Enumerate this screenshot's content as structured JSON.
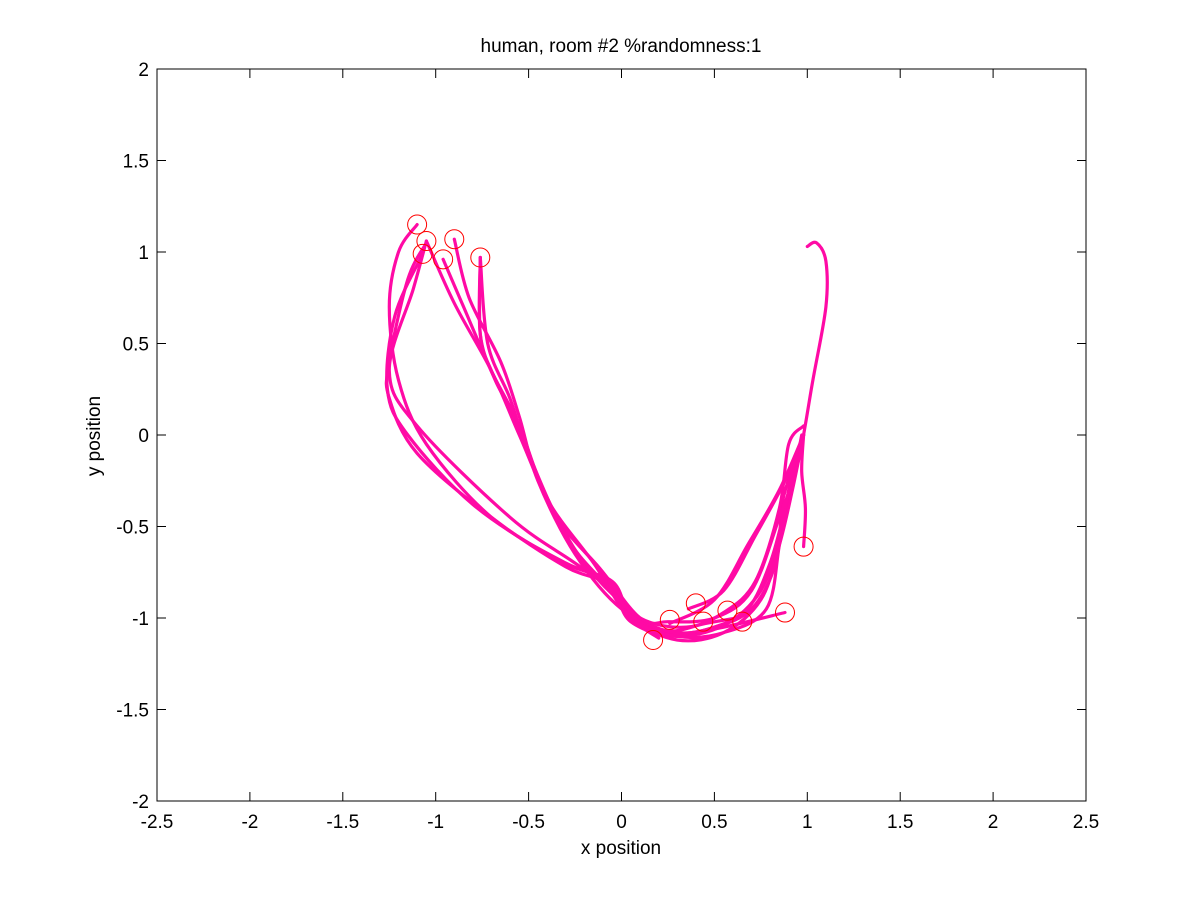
{
  "chart_data": {
    "type": "line",
    "title": "human, room #2 %randomness:1",
    "xlabel": "x position",
    "ylabel": "y position",
    "xlim": [
      -2.5,
      2.5
    ],
    "ylim": [
      -2,
      2
    ],
    "xticks": [
      -2.5,
      -2,
      -1.5,
      -1,
      -0.5,
      0,
      0.5,
      1,
      1.5,
      2,
      2.5
    ],
    "xtick_labels": [
      "-2.5",
      "-2",
      "-1.5",
      "-1",
      "-0.5",
      "0",
      "0.5",
      "1",
      "1.5",
      "2",
      "2.5"
    ],
    "yticks": [
      -2,
      -1.5,
      -1,
      -0.5,
      0,
      0.5,
      1,
      1.5,
      2
    ],
    "ytick_labels": [
      "-2",
      "-1.5",
      "-1",
      "-0.5",
      "0",
      "0.5",
      "1",
      "1.5",
      "2"
    ],
    "grid": false,
    "line_color": "#ff0aa5",
    "marker_color": "#ff0000",
    "series": [
      {
        "points": [
          [
            -1.1,
            1.15
          ],
          [
            -1.2,
            1.0
          ],
          [
            -1.25,
            0.7
          ],
          [
            -1.2,
            0.3
          ],
          [
            -1.05,
            -0.05
          ],
          [
            -0.7,
            -0.45
          ],
          [
            -0.3,
            -0.7
          ],
          [
            -0.05,
            -0.8
          ],
          [
            0.05,
            -0.98
          ],
          [
            0.25,
            -1.07
          ],
          [
            0.45,
            -1.03
          ],
          [
            0.62,
            -1.0
          ]
        ]
      },
      {
        "points": [
          [
            -1.05,
            1.05
          ],
          [
            -1.15,
            0.85
          ],
          [
            -1.25,
            0.4
          ],
          [
            -1.25,
            0.2
          ],
          [
            -1.1,
            -0.1
          ],
          [
            -0.7,
            -0.45
          ],
          [
            -0.3,
            -0.72
          ],
          [
            -0.05,
            -0.82
          ],
          [
            0.05,
            -0.99
          ],
          [
            0.25,
            -1.08
          ],
          [
            0.5,
            -1.06
          ],
          [
            0.88,
            -0.97
          ]
        ]
      },
      {
        "points": [
          [
            -1.07,
            0.99
          ],
          [
            -1.22,
            0.65
          ],
          [
            -1.26,
            0.25
          ],
          [
            -1.15,
            0.0
          ],
          [
            -0.8,
            -0.38
          ],
          [
            -0.35,
            -0.68
          ],
          [
            -0.07,
            -0.8
          ],
          [
            0.05,
            -1.0
          ],
          [
            0.2,
            -1.11
          ]
        ]
      },
      {
        "points": [
          [
            -1.05,
            1.06
          ],
          [
            -1.12,
            0.8
          ],
          [
            -1.25,
            0.35
          ],
          [
            -1.1,
            0.05
          ],
          [
            -0.6,
            -0.45
          ],
          [
            -0.25,
            -0.7
          ],
          [
            -0.05,
            -0.85
          ],
          [
            0.05,
            -1.02
          ],
          [
            0.28,
            -1.1
          ],
          [
            0.55,
            -1.04
          ],
          [
            0.75,
            -0.85
          ],
          [
            0.85,
            -0.55
          ],
          [
            0.93,
            -0.2
          ],
          [
            0.97,
            0.0
          ]
        ]
      },
      {
        "points": [
          [
            -1.05,
            1.06
          ],
          [
            -0.9,
            0.72
          ],
          [
            -0.7,
            0.35
          ],
          [
            -0.55,
            0.0
          ],
          [
            -0.35,
            -0.45
          ],
          [
            -0.1,
            -0.75
          ],
          [
            0.05,
            -1.0
          ],
          [
            0.3,
            -1.12
          ],
          [
            0.55,
            -1.08
          ],
          [
            0.75,
            -0.9
          ],
          [
            0.85,
            -0.6
          ],
          [
            0.92,
            -0.3
          ],
          [
            0.98,
            0.0
          ]
        ]
      },
      {
        "points": [
          [
            -0.96,
            0.96
          ],
          [
            -0.85,
            0.7
          ],
          [
            -0.7,
            0.35
          ],
          [
            -0.55,
            0.05
          ],
          [
            -0.4,
            -0.35
          ],
          [
            -0.15,
            -0.7
          ],
          [
            0.05,
            -1.0
          ],
          [
            0.3,
            -1.1
          ],
          [
            0.55,
            -1.08
          ],
          [
            0.78,
            -0.95
          ],
          [
            0.85,
            -0.6
          ],
          [
            0.9,
            -0.3
          ],
          [
            0.95,
            -0.1
          ]
        ]
      },
      {
        "points": [
          [
            -0.9,
            1.07
          ],
          [
            -0.82,
            0.75
          ],
          [
            -0.65,
            0.4
          ],
          [
            -0.55,
            0.1
          ],
          [
            -0.45,
            -0.25
          ],
          [
            -0.25,
            -0.65
          ],
          [
            0.0,
            -0.95
          ],
          [
            0.28,
            -1.08
          ],
          [
            0.5,
            -1.05
          ],
          [
            0.7,
            -0.95
          ],
          [
            0.83,
            -0.7
          ],
          [
            0.87,
            -0.35
          ],
          [
            0.95,
            -0.1
          ]
        ]
      },
      {
        "points": [
          [
            -0.76,
            0.97
          ],
          [
            -0.76,
            0.55
          ],
          [
            -0.7,
            0.35
          ],
          [
            -0.6,
            0.15
          ],
          [
            -0.5,
            -0.1
          ],
          [
            -0.35,
            -0.45
          ],
          [
            -0.1,
            -0.75
          ],
          [
            0.1,
            -1.0
          ],
          [
            0.3,
            -1.08
          ],
          [
            0.5,
            -1.05
          ],
          [
            0.68,
            -0.95
          ],
          [
            0.8,
            -0.7
          ],
          [
            0.88,
            -0.4
          ],
          [
            0.93,
            -0.15
          ]
        ]
      },
      {
        "points": [
          [
            -0.76,
            0.97
          ],
          [
            -0.76,
            0.55
          ],
          [
            -0.68,
            0.3
          ],
          [
            -0.55,
            0.05
          ],
          [
            -0.42,
            -0.3
          ],
          [
            -0.2,
            -0.7
          ],
          [
            0.1,
            -1.0
          ],
          [
            0.25,
            -1.02
          ],
          [
            0.5,
            -1.0
          ],
          [
            0.7,
            -0.85
          ],
          [
            0.85,
            -0.45
          ],
          [
            0.95,
            -0.15
          ],
          [
            1.03,
            0.3
          ],
          [
            1.1,
            0.7
          ],
          [
            1.1,
            0.95
          ],
          [
            1.05,
            1.05
          ],
          [
            1.0,
            1.03
          ]
        ]
      },
      {
        "points": [
          [
            -0.76,
            0.97
          ],
          [
            -0.72,
            0.5
          ],
          [
            -0.6,
            0.2
          ],
          [
            -0.5,
            -0.1
          ],
          [
            -0.3,
            -0.55
          ],
          [
            -0.1,
            -0.8
          ],
          [
            0.1,
            -1.0
          ],
          [
            0.35,
            -1.05
          ],
          [
            0.55,
            -0.97
          ],
          [
            0.72,
            -0.8
          ],
          [
            0.85,
            -0.4
          ],
          [
            0.9,
            -0.05
          ],
          [
            0.98,
            0.05
          ]
        ]
      },
      {
        "points": [
          [
            0.26,
            -1.03
          ],
          [
            0.5,
            -0.9
          ],
          [
            0.68,
            -0.6
          ],
          [
            0.85,
            -0.3
          ],
          [
            0.98,
            0.0
          ]
        ]
      },
      {
        "points": [
          [
            0.36,
            -0.95
          ],
          [
            0.55,
            -0.85
          ],
          [
            0.72,
            -0.55
          ],
          [
            0.88,
            -0.25
          ],
          [
            0.98,
            0.0
          ]
        ]
      },
      {
        "points": [
          [
            0.98,
            -0.61
          ],
          [
            0.99,
            -0.4
          ],
          [
            0.97,
            -0.2
          ],
          [
            0.98,
            0.0
          ]
        ]
      }
    ],
    "markers": [
      [
        -1.1,
        1.15
      ],
      [
        -1.05,
        1.06
      ],
      [
        -1.07,
        0.99
      ],
      [
        -0.96,
        0.96
      ],
      [
        -0.9,
        1.07
      ],
      [
        -0.76,
        0.97
      ],
      [
        0.98,
        -0.61
      ],
      [
        0.88,
        -0.97
      ],
      [
        0.65,
        -1.02
      ],
      [
        0.57,
        -0.96
      ],
      [
        0.44,
        -1.02
      ],
      [
        0.4,
        -0.92
      ],
      [
        0.26,
        -1.01
      ],
      [
        0.17,
        -1.12
      ]
    ]
  }
}
